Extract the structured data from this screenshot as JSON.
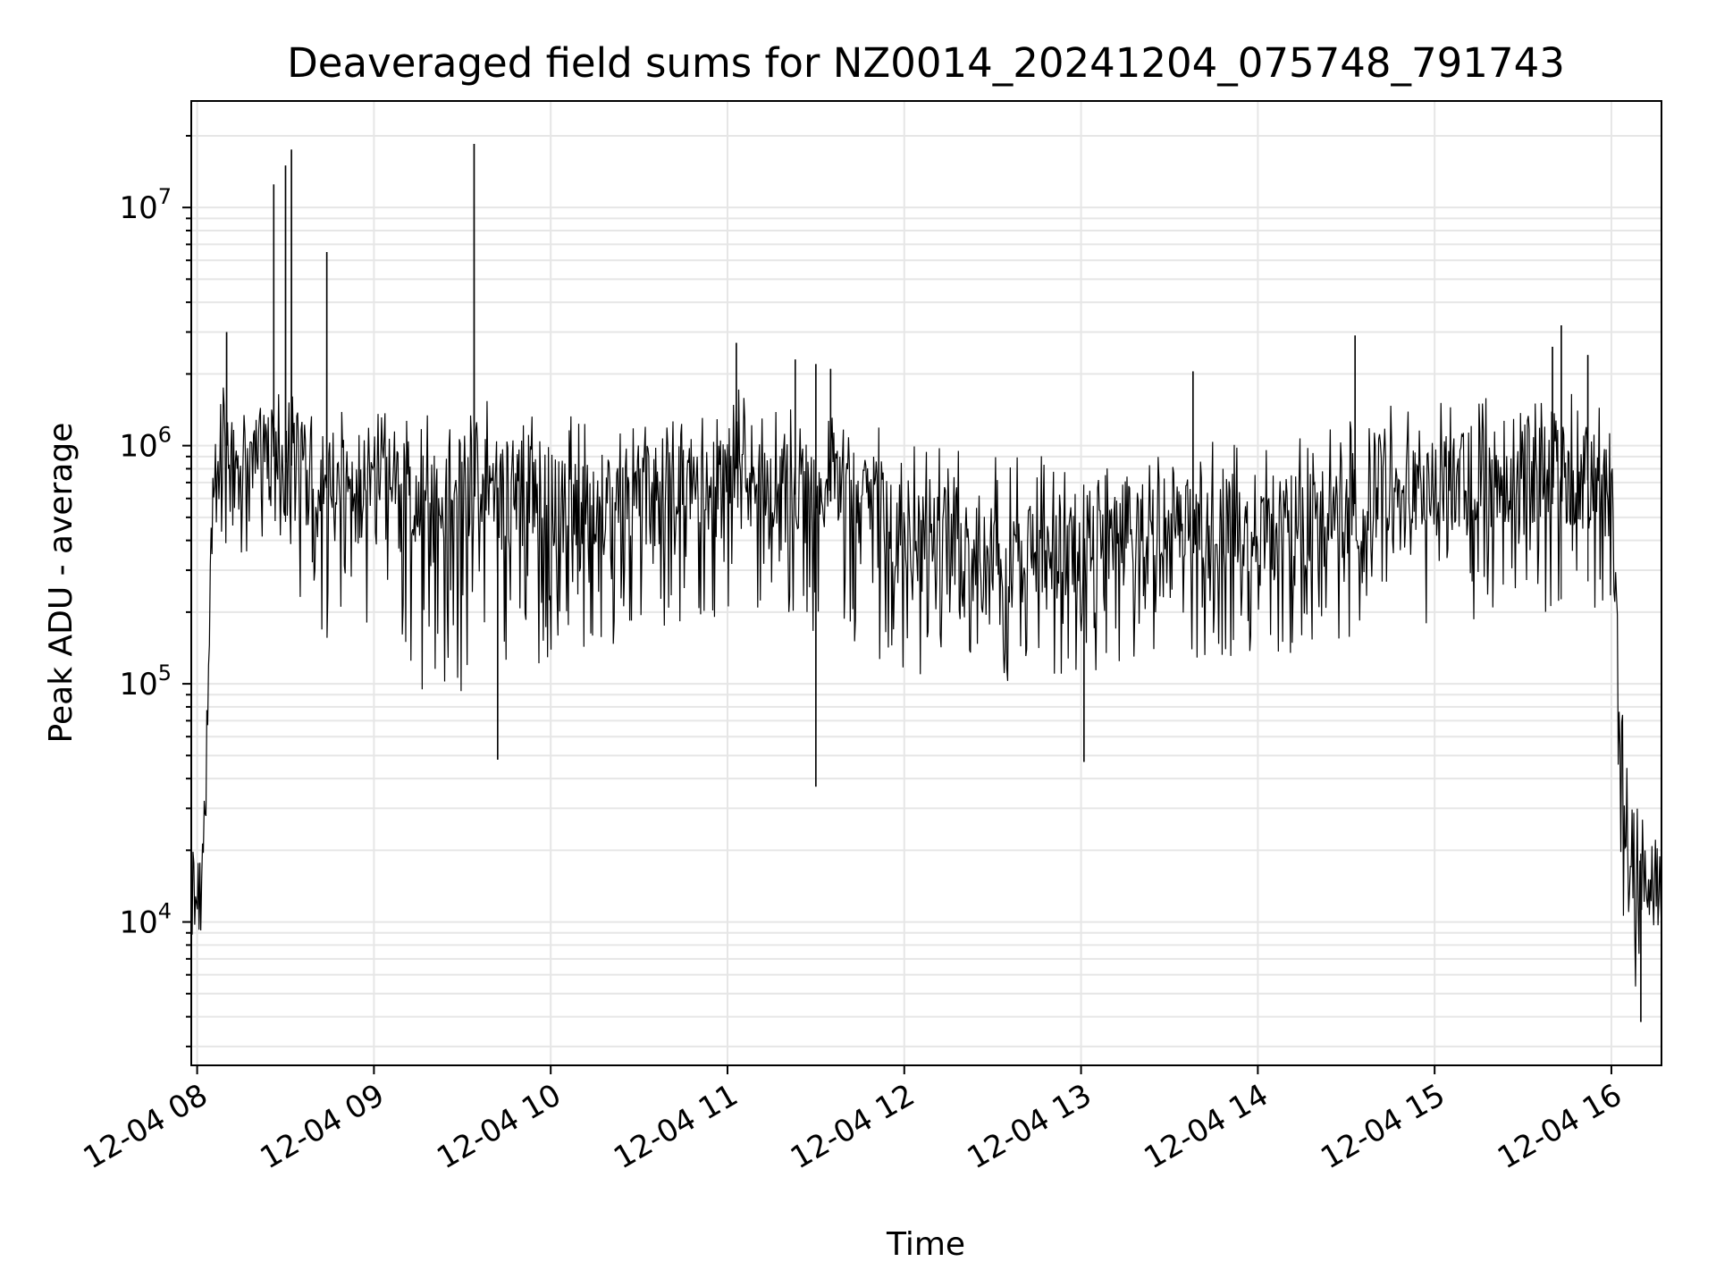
{
  "chart_data": {
    "type": "line",
    "title": "Deaveraged field sums for NZ0014_20241204_075748_791743",
    "xlabel": "Time",
    "ylabel": "Peak ADU - average",
    "yscale": "log",
    "ylim": [
      2500,
      28000000
    ],
    "xlim": [
      "2024-12-04 07:58",
      "2024-12-04 16:17"
    ],
    "grid": true,
    "line_color": "#000000",
    "x_ticks": [
      {
        "label": "12-04 08",
        "value": "2024-12-04 08:00"
      },
      {
        "label": "12-04 09",
        "value": "2024-12-04 09:00"
      },
      {
        "label": "12-04 10",
        "value": "2024-12-04 10:00"
      },
      {
        "label": "12-04 11",
        "value": "2024-12-04 11:00"
      },
      {
        "label": "12-04 12",
        "value": "2024-12-04 12:00"
      },
      {
        "label": "12-04 13",
        "value": "2024-12-04 13:00"
      },
      {
        "label": "12-04 14",
        "value": "2024-12-04 14:00"
      },
      {
        "label": "12-04 15",
        "value": "2024-12-04 15:00"
      },
      {
        "label": "12-04 16",
        "value": "2024-12-04 16:00"
      }
    ],
    "y_ticks": [
      {
        "base": "10",
        "exp": "4",
        "value": 10000
      },
      {
        "base": "10",
        "exp": "5",
        "value": 100000
      },
      {
        "base": "10",
        "exp": "6",
        "value": 1000000
      },
      {
        "base": "10",
        "exp": "7",
        "value": 10000000
      }
    ],
    "series": [
      {
        "x": [
          "2024-12-04 07:58",
          "2024-12-04 08:00",
          "2024-12-04 08:02",
          "2024-12-04 08:03",
          "2024-12-04 08:04",
          "2024-12-04 08:05",
          "2024-12-04 08:07",
          "2024-12-04 08:08",
          "2024-12-04 08:10",
          "2024-12-04 08:12",
          "2024-12-04 08:15",
          "2024-12-04 08:20",
          "2024-12-04 08:26",
          "2024-12-04 08:30",
          "2024-12-04 08:34",
          "2024-12-04 08:38",
          "2024-12-04 08:45",
          "2024-12-04 08:52",
          "2024-12-04 09:00",
          "2024-12-04 09:08",
          "2024-12-04 09:15",
          "2024-12-04 09:22",
          "2024-12-04 09:30",
          "2024-12-04 09:36",
          "2024-12-04 09:45",
          "2024-12-04 09:55",
          "2024-12-04 10:05",
          "2024-12-04 10:15",
          "2024-12-04 10:30",
          "2024-12-04 10:45",
          "2024-12-04 11:00",
          "2024-12-04 11:03",
          "2024-12-04 11:15",
          "2024-12-04 11:30",
          "2024-12-04 11:45",
          "2024-12-04 12:00",
          "2024-12-04 12:15",
          "2024-12-04 12:30",
          "2024-12-04 12:45",
          "2024-12-04 13:00",
          "2024-12-04 13:15",
          "2024-12-04 13:30",
          "2024-12-04 13:45",
          "2024-12-04 14:00",
          "2024-12-04 14:15",
          "2024-12-04 14:30",
          "2024-12-04 14:45",
          "2024-12-04 15:00",
          "2024-12-04 15:15",
          "2024-12-04 15:30",
          "2024-12-04 15:45",
          "2024-12-04 15:55",
          "2024-12-04 16:00",
          "2024-12-04 16:02",
          "2024-12-04 16:04",
          "2024-12-04 16:06",
          "2024-12-04 16:08",
          "2024-12-04 16:12",
          "2024-12-04 16:17"
        ],
        "y": [
          15000,
          11000,
          14000,
          60000,
          200000,
          500000,
          800000,
          1100000,
          1000000,
          700000,
          900000,
          850000,
          900000,
          850000,
          800000,
          750000,
          650000,
          600000,
          700000,
          800000,
          650000,
          600000,
          650000,
          700000,
          650000,
          650000,
          600000,
          550000,
          600000,
          600000,
          650000,
          800000,
          650000,
          600000,
          550000,
          450000,
          380000,
          350000,
          360000,
          400000,
          420000,
          440000,
          450000,
          420000,
          480000,
          550000,
          650000,
          650000,
          700000,
          800000,
          750000,
          700000,
          650000,
          150000,
          40000,
          15000,
          14000,
          15000,
          12000
        ],
        "band_low": [
          6000,
          4000,
          5000,
          20000,
          80000,
          200000,
          300000,
          400000,
          350000,
          300000,
          300000,
          300000,
          300000,
          250000,
          220000,
          200000,
          150000,
          120000,
          150000,
          150000,
          90000,
          80000,
          90000,
          100000,
          100000,
          120000,
          130000,
          140000,
          150000,
          160000,
          180000,
          200000,
          170000,
          150000,
          140000,
          110000,
          100000,
          95000,
          100000,
          110000,
          120000,
          125000,
          130000,
          120000,
          140000,
          150000,
          170000,
          170000,
          180000,
          200000,
          200000,
          180000,
          160000,
          40000,
          10000,
          6000,
          5000,
          7000,
          8000
        ],
        "band_high": [
          22000,
          20000,
          25000,
          150000,
          500000,
          900000,
          1300000,
          2500000,
          1500000,
          1300000,
          1500000,
          1600000,
          1700000,
          1700000,
          1600000,
          1500000,
          1400000,
          1400000,
          1500000,
          1600000,
          1500000,
          1500000,
          1500000,
          1600000,
          1500000,
          1500000,
          1400000,
          1300000,
          1300000,
          1300000,
          1400000,
          1800000,
          1500000,
          1400000,
          1300000,
          1100000,
          1000000,
          900000,
          900000,
          950000,
          1000000,
          1050000,
          1050000,
          1000000,
          1100000,
          1300000,
          1500000,
          1500000,
          1600000,
          1700000,
          1700000,
          1600000,
          1500000,
          400000,
          100000,
          30000,
          30000,
          30000,
          25000
        ],
        "spikes": [
          {
            "x": "2024-12-04 08:10",
            "y": 3000000
          },
          {
            "x": "2024-12-04 08:26",
            "y": 12500000
          },
          {
            "x": "2024-12-04 08:30",
            "y": 15000000
          },
          {
            "x": "2024-12-04 08:32",
            "y": 17500000
          },
          {
            "x": "2024-12-04 08:44",
            "y": 6500000
          },
          {
            "x": "2024-12-04 09:34",
            "y": 18500000
          },
          {
            "x": "2024-12-04 11:03",
            "y": 2700000
          },
          {
            "x": "2024-12-04 11:23",
            "y": 2300000
          },
          {
            "x": "2024-12-04 11:30",
            "y": 2200000
          },
          {
            "x": "2024-12-04 11:35",
            "y": 2100000
          },
          {
            "x": "2024-12-04 13:38",
            "y": 2050000
          },
          {
            "x": "2024-12-04 14:33",
            "y": 2900000
          },
          {
            "x": "2024-12-04 15:40",
            "y": 2600000
          },
          {
            "x": "2024-12-04 15:43",
            "y": 3200000
          },
          {
            "x": "2024-12-04 15:52",
            "y": 2400000
          },
          {
            "x": "2024-12-04 11:30",
            "y": 37000
          },
          {
            "x": "2024-12-04 13:01",
            "y": 47000
          },
          {
            "x": "2024-12-04 09:42",
            "y": 48000
          },
          {
            "x": "2024-12-04 16:10",
            "y": 3800
          }
        ]
      }
    ]
  }
}
